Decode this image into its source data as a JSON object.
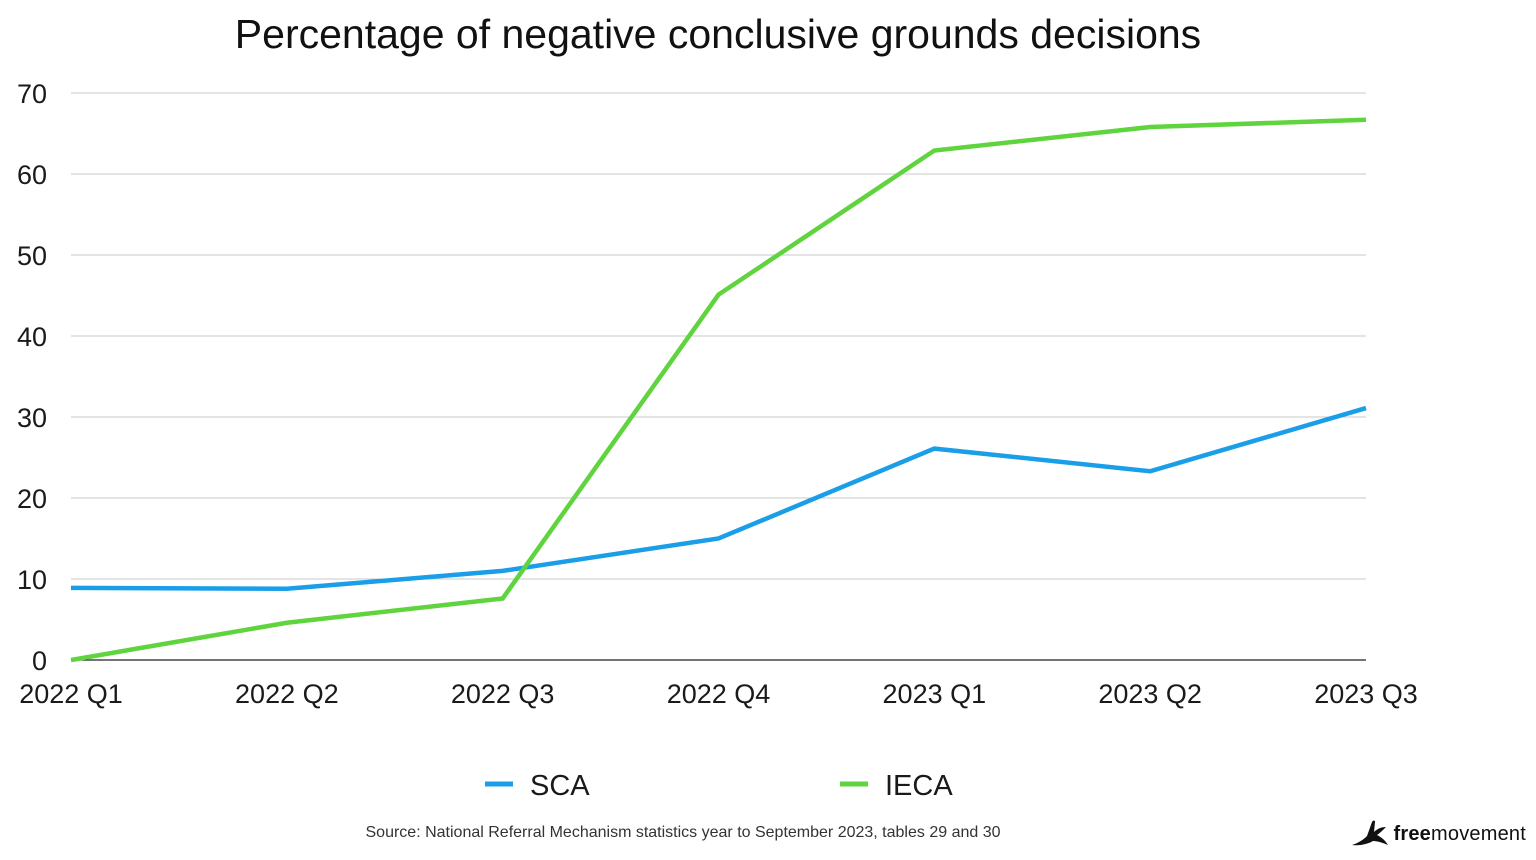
{
  "chart_data": {
    "type": "line",
    "title": "Percentage of negative conclusive grounds decisions",
    "categories": [
      "2022 Q1",
      "2022 Q2",
      "2022 Q3",
      "2022 Q4",
      "2023 Q1",
      "2023 Q2",
      "2023 Q3"
    ],
    "series": [
      {
        "name": "SCA",
        "color": "#1a9ee8",
        "values": [
          8.9,
          8.8,
          11.0,
          15.0,
          26.1,
          23.3,
          31.1
        ]
      },
      {
        "name": "IECA",
        "color": "#5fd43e",
        "values": [
          0.0,
          4.6,
          7.6,
          45.1,
          62.9,
          65.8,
          66.7
        ]
      }
    ],
    "y_ticks": [
      "0",
      "10",
      "20",
      "30",
      "40",
      "50",
      "60",
      "70"
    ],
    "ylim": [
      0,
      70
    ],
    "xlabel": "",
    "ylabel": "",
    "grid": true,
    "legend_position": "bottom-center",
    "source": "Source: National Referral Mechanism statistics year to September 2023, tables 29 and 30"
  },
  "logo": {
    "bold_text": "free",
    "regular_text": "movement",
    "icon": "bird-icon"
  }
}
